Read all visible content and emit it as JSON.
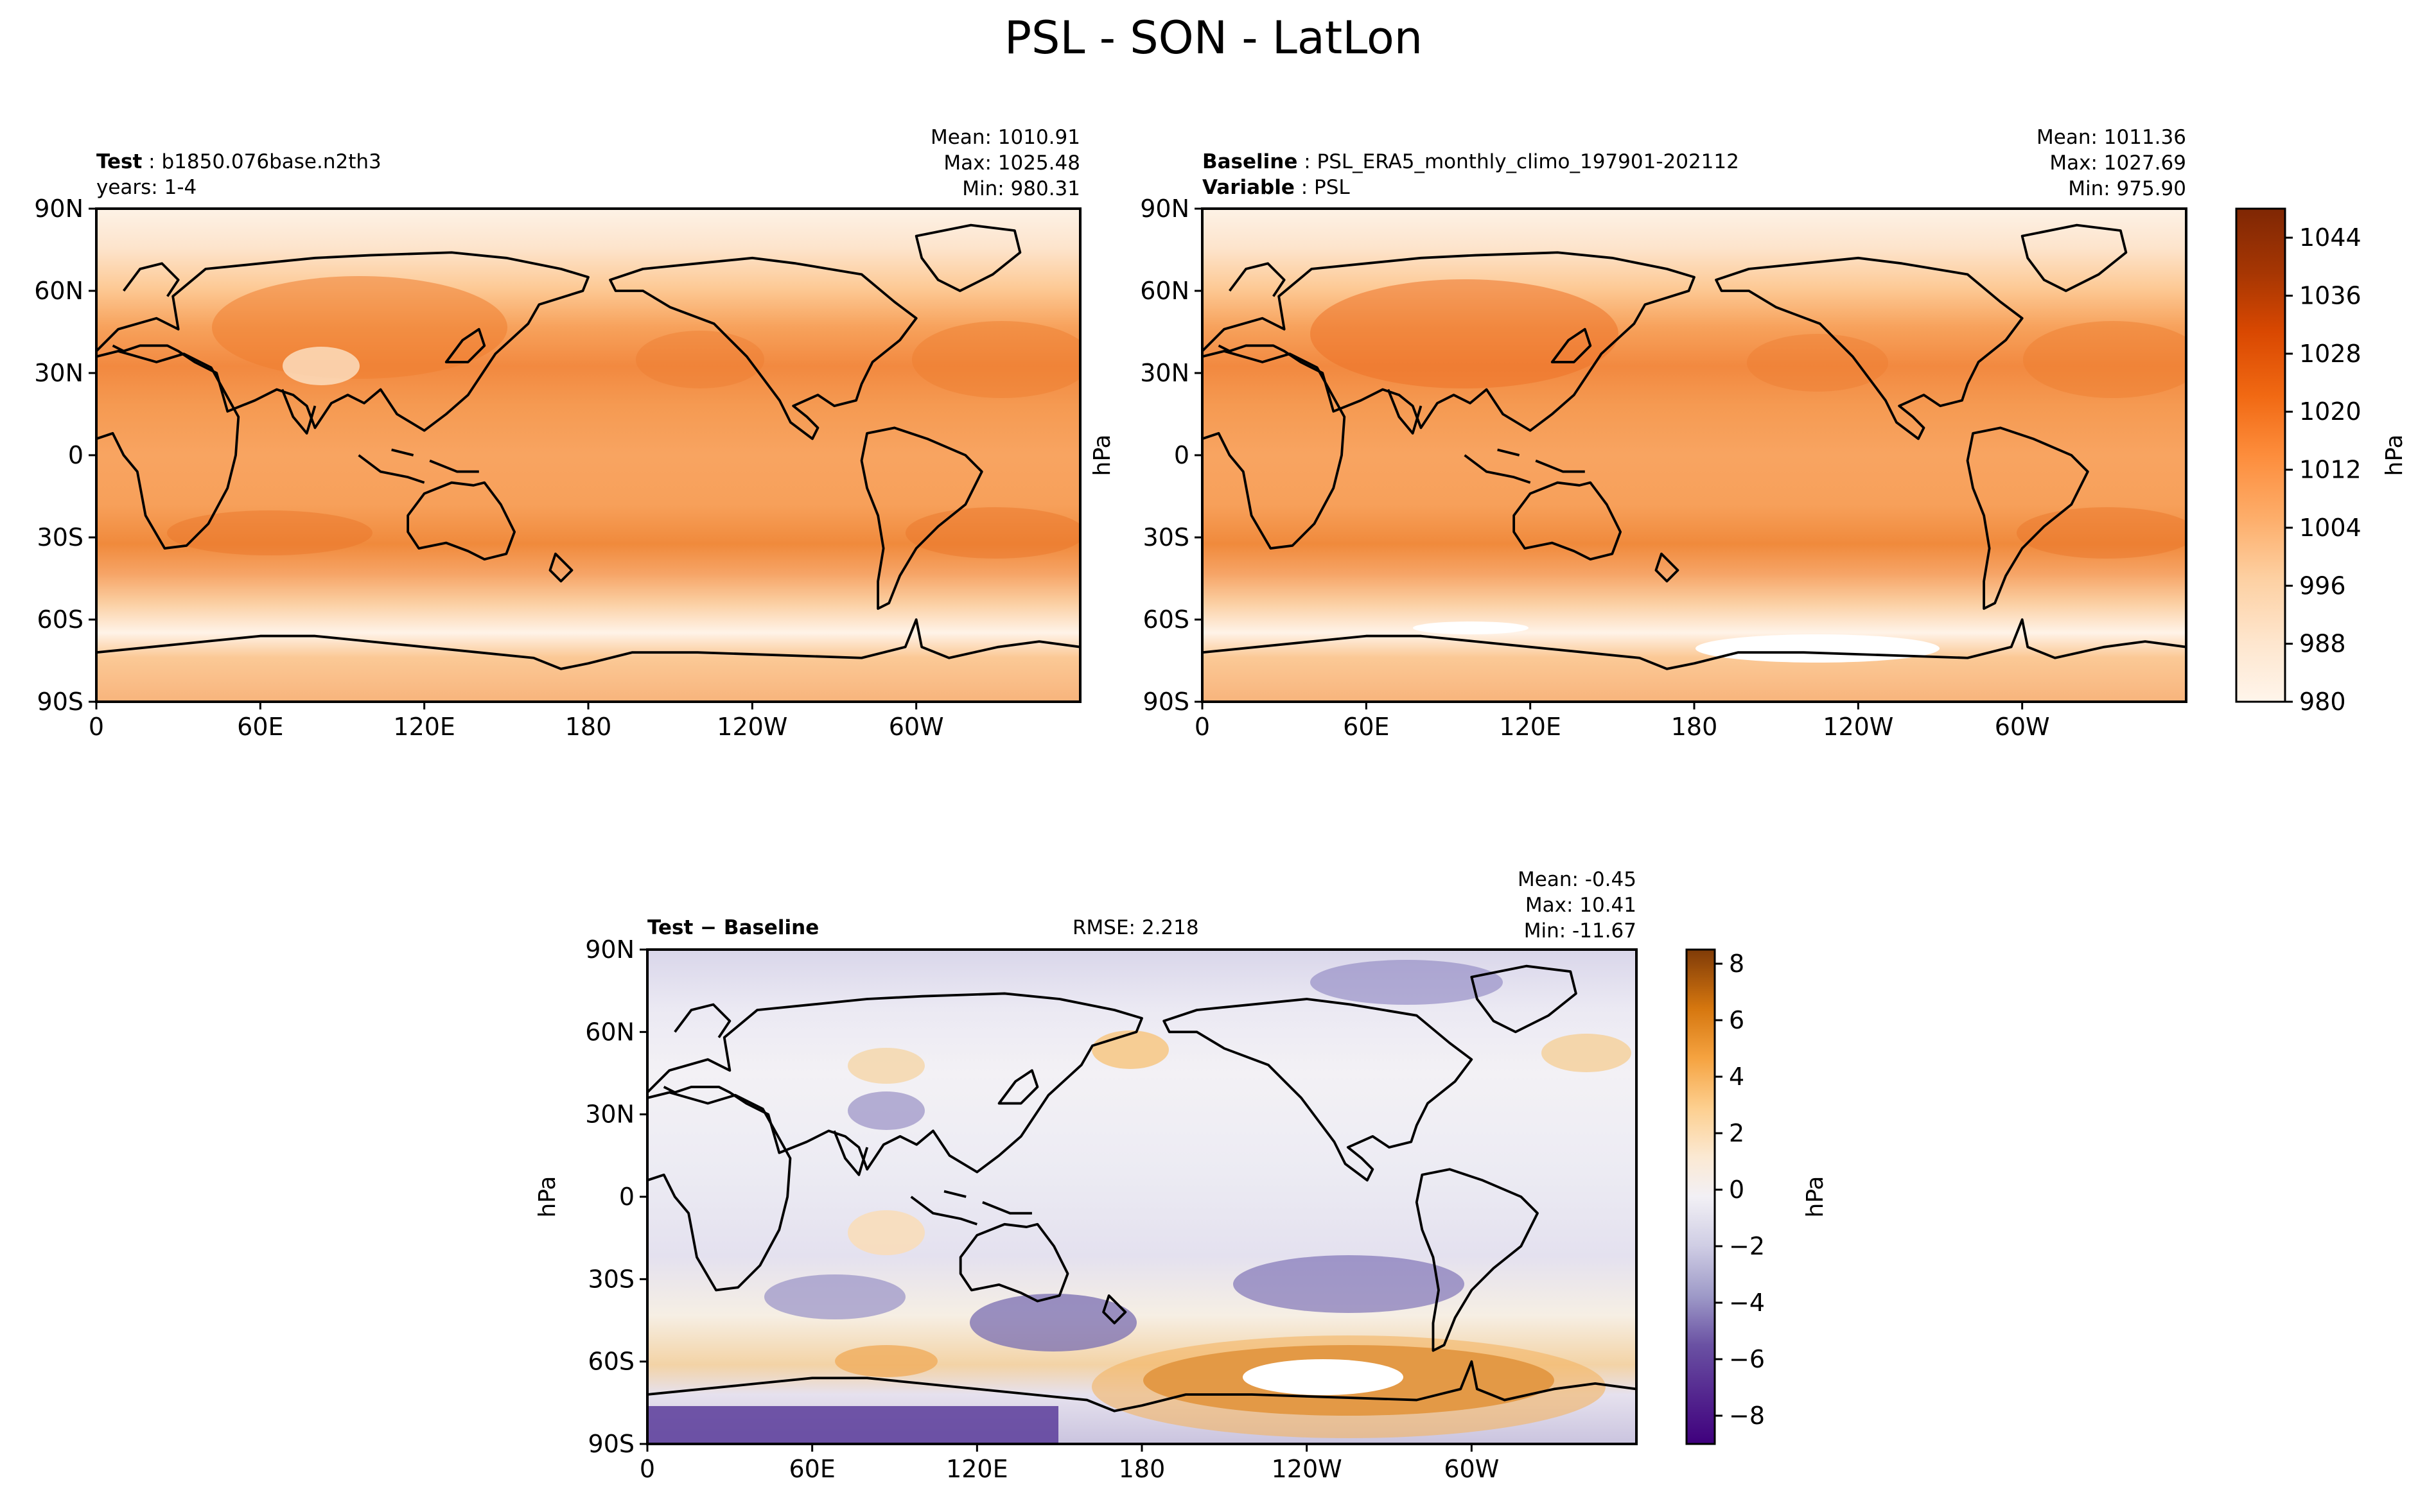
{
  "figure": {
    "title": "PSL - SON - LatLon",
    "colors": {
      "land_outline": "#000000",
      "background": "#ffffff",
      "orange_ramp": [
        "#fff5eb",
        "#fee6ce",
        "#fdd0a2",
        "#fdae6b",
        "#fd8d3c",
        "#f16913",
        "#d94801",
        "#a63603",
        "#7f2704"
      ],
      "diverging_ramp": [
        "#3f007d",
        "#54278f",
        "#6a51a3",
        "#807dba",
        "#9e9ac8",
        "#bcbddc",
        "#dadaeb",
        "#efedf5",
        "#fdf1e3",
        "#fee0b6",
        "#fdb863",
        "#e08214",
        "#b35806",
        "#7f3b08"
      ]
    }
  },
  "panels": {
    "test": {
      "case_label": "Test",
      "case_name": "b1850.076base.n2th3",
      "years": "years: 1-4",
      "mean": "Mean: 1010.91",
      "max": "Max: 1025.48",
      "min": "Min: 980.31"
    },
    "baseline": {
      "case_label": "Baseline",
      "case_name": "PSL_ERA5_monthly_climo_197901-202112",
      "variable_label": "Variable",
      "variable_name": "PSL",
      "mean": "Mean: 1011.36",
      "max": "Max: 1027.69",
      "min": "Min: 975.90"
    },
    "diff": {
      "label": "Test − Baseline",
      "rmse": "RMSE: 2.218",
      "mean": "Mean: -0.45",
      "max": "Max: 10.41",
      "min": "Min: -11.67"
    }
  },
  "chart_data": [
    {
      "type": "heatmap",
      "name": "Test",
      "title": "Test : b1850.076base.n2th3",
      "subtitle": "years: 1-4",
      "x_tick_labels": [
        "0",
        "60E",
        "120E",
        "180",
        "120W",
        "60W"
      ],
      "y_tick_labels": [
        "90N",
        "60N",
        "30N",
        "0",
        "30S",
        "60S",
        "90S"
      ],
      "x_range_deg": [
        0,
        360
      ],
      "y_range_deg": [
        -90,
        90
      ],
      "ylabel": "",
      "units": "hPa",
      "stats": {
        "mean": 1010.91,
        "max": 1025.48,
        "min": 980.31
      }
    },
    {
      "type": "heatmap",
      "name": "Baseline",
      "title": "Baseline : PSL_ERA5_monthly_climo_197901-202112",
      "subtitle": "Variable : PSL",
      "x_tick_labels": [
        "0",
        "60E",
        "120E",
        "180",
        "120W",
        "60W"
      ],
      "y_tick_labels": [
        "90N",
        "60N",
        "30N",
        "0",
        "30S",
        "60S",
        "90S"
      ],
      "x_range_deg": [
        0,
        360
      ],
      "y_range_deg": [
        -90,
        90
      ],
      "ylabel": "hPa",
      "units": "hPa",
      "stats": {
        "mean": 1011.36,
        "max": 1027.69,
        "min": 975.9
      },
      "colorbar": {
        "range": [
          980,
          1048
        ],
        "tick_labels": [
          "980",
          "988",
          "996",
          "1004",
          "1012",
          "1020",
          "1028",
          "1036",
          "1044"
        ],
        "label": "hPa"
      }
    },
    {
      "type": "heatmap",
      "name": "Test - Baseline",
      "title": "Test − Baseline",
      "rmse": 2.218,
      "x_tick_labels": [
        "0",
        "60E",
        "120E",
        "180",
        "120W",
        "60W"
      ],
      "y_tick_labels": [
        "90N",
        "60N",
        "30N",
        "0",
        "30S",
        "60S",
        "90S"
      ],
      "x_range_deg": [
        0,
        360
      ],
      "y_range_deg": [
        -90,
        90
      ],
      "ylabel": "hPa",
      "units": "hPa",
      "stats": {
        "mean": -0.45,
        "max": 10.41,
        "min": -11.67
      },
      "colorbar": {
        "range": [
          -9,
          8.5
        ],
        "tick_labels": [
          "8",
          "6",
          "4",
          "2",
          "0",
          "−2",
          "−4",
          "−6",
          "−8"
        ],
        "tick_values": [
          8,
          6,
          4,
          2,
          0,
          -2,
          -4,
          -6,
          -8
        ],
        "label": "hPa"
      }
    }
  ]
}
